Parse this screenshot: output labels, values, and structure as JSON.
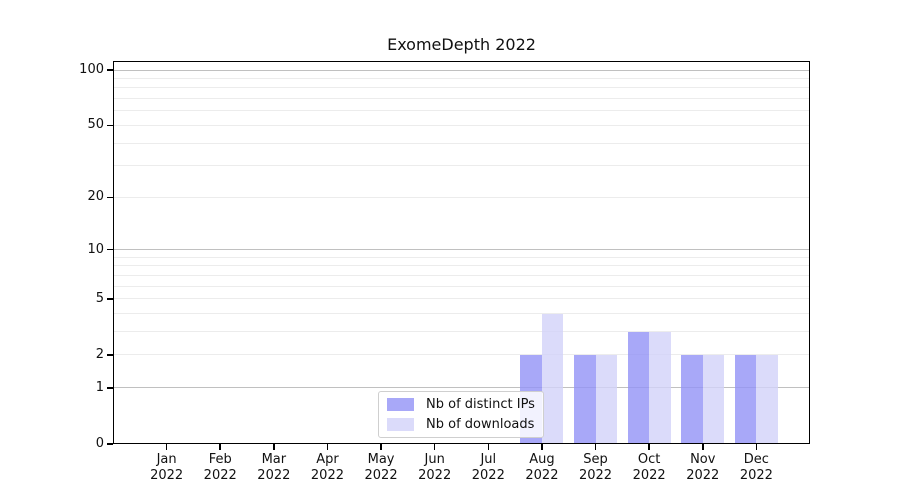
{
  "chart_data": {
    "type": "bar",
    "title": "ExomeDepth 2022",
    "categories": [
      "Jan",
      "Feb",
      "Mar",
      "Apr",
      "May",
      "Jun",
      "Jul",
      "Aug",
      "Sep",
      "Oct",
      "Nov",
      "Dec"
    ],
    "year_label": "2022",
    "series": [
      {
        "name": "Nb of distinct IPs",
        "color": "rgba(146,146,246,0.8)",
        "values": [
          0,
          0,
          0,
          0,
          0,
          0,
          0,
          2,
          2,
          3,
          2,
          2
        ]
      },
      {
        "name": "Nb of downloads",
        "color": "rgba(210,210,249,0.8)",
        "values": [
          0,
          0,
          0,
          0,
          0,
          0,
          0,
          4,
          2,
          3,
          2,
          2
        ]
      }
    ],
    "yscale": "log1p",
    "ylim": [
      0,
      100
    ],
    "yticks": [
      100,
      50,
      20,
      10,
      5,
      2,
      1,
      0
    ],
    "gridlines": {
      "major": [
        1,
        10,
        100
      ],
      "minor": [
        2,
        3,
        4,
        5,
        6,
        7,
        8,
        9,
        20,
        30,
        40,
        50,
        60,
        70,
        80,
        90
      ]
    },
    "legend_position": "lower center-left, inside plot",
    "colors": {
      "grid_major": "#c0c0c0",
      "grid_minor": "#ececec",
      "spine": "#000000",
      "text": "#111111",
      "background": "#ffffff"
    }
  }
}
